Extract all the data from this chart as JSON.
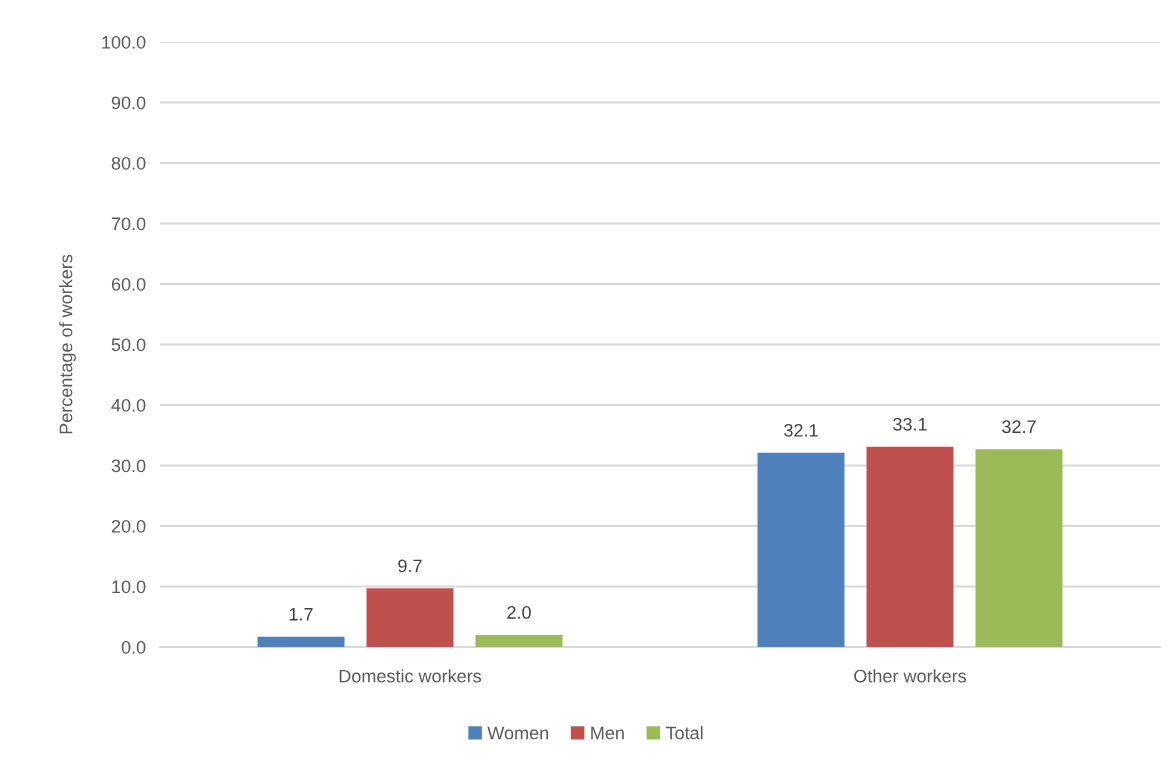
{
  "chart_data": {
    "type": "bar",
    "ylabel": "Percentage of workers",
    "categories": [
      "Domestic workers",
      "Other workers"
    ],
    "series": [
      {
        "name": "Women",
        "color": "#4f81bd",
        "values": [
          1.7,
          32.1
        ],
        "value_labels": [
          "1.7",
          "32.1"
        ]
      },
      {
        "name": "Men",
        "color": "#c0504d",
        "values": [
          9.7,
          33.1
        ],
        "value_labels": [
          "9.7",
          "33.1"
        ]
      },
      {
        "name": "Total",
        "color": "#9bbb59",
        "values": [
          2.0,
          32.7
        ],
        "value_labels": [
          "2.0",
          "32.7"
        ]
      }
    ],
    "ylim": [
      0,
      100
    ],
    "yticks": [
      {
        "value": 0,
        "label": "0.0"
      },
      {
        "value": 10,
        "label": "10.0"
      },
      {
        "value": 20,
        "label": "20.0"
      },
      {
        "value": 30,
        "label": "30.0"
      },
      {
        "value": 40,
        "label": "40.0"
      },
      {
        "value": 50,
        "label": "50.0"
      },
      {
        "value": 60,
        "label": "60.0"
      },
      {
        "value": 70,
        "label": "70.0"
      },
      {
        "value": 80,
        "label": "80.0"
      },
      {
        "value": 90,
        "label": "90.0"
      },
      {
        "value": 100,
        "label": "100.0"
      }
    ],
    "grid": "y",
    "legend": "bottom"
  }
}
